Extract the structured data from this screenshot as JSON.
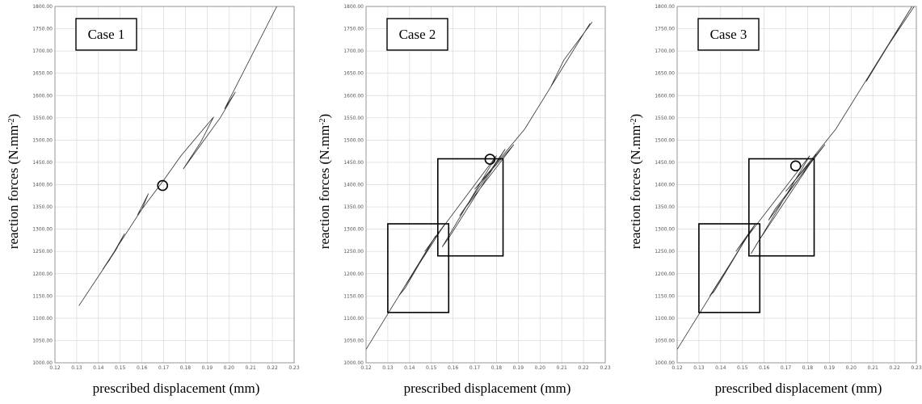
{
  "chart_data": [
    {
      "type": "line",
      "annotation": "Case 1",
      "xlabel": "prescribed displacement (mm)",
      "ylabel_main": "reaction forces (N.mm",
      "ylabel_sup": "-2",
      "ylabel_end": ")",
      "xlim": [
        0.12,
        0.23
      ],
      "ylim": [
        1000,
        1800
      ],
      "xticks": [
        "0.12",
        "0.13",
        "0.14",
        "0.15",
        "0.16",
        "0.17",
        "0.18",
        "0.19",
        "0.20",
        "0.21",
        "0.22",
        "0.23"
      ],
      "yticks": [
        "1000.00",
        "1050.00",
        "1100.00",
        "1150.00",
        "1200.00",
        "1250.00",
        "1300.00",
        "1350.00",
        "1400.00",
        "1450.00",
        "1500.00",
        "1550.00",
        "1600.00",
        "1650.00",
        "1700.00",
        "1750.00",
        "1800.00"
      ],
      "grid": true,
      "marker": {
        "x": 0.1695,
        "y": 1398
      },
      "boxes": [],
      "series": [
        {
          "x": [
            0.131,
            0.148,
            0.152,
            0.145,
            0.142,
            0.16,
            0.163,
            0.158,
            0.17,
            0.178,
            0.193,
            0.187,
            0.179,
            0.196,
            0.203,
            0.198,
            0.222
          ],
          "y": [
            1128,
            1253,
            1290,
            1230,
            1210,
            1345,
            1380,
            1332,
            1410,
            1465,
            1552,
            1495,
            1435,
            1550,
            1608,
            1570,
            1800
          ]
        }
      ]
    },
    {
      "type": "line",
      "annotation": "Case 2",
      "xlabel": "prescribed displacement (mm)",
      "ylabel_main": "reaction forces (N.mm",
      "ylabel_sup": "-2",
      "ylabel_end": ")",
      "xlim": [
        0.12,
        0.23
      ],
      "ylim": [
        1000,
        1800
      ],
      "xticks": [
        "0.12",
        "0.13",
        "0.14",
        "0.15",
        "0.16",
        "0.17",
        "0.18",
        "0.19",
        "0.20",
        "0.21",
        "0.22",
        "0.23"
      ],
      "yticks": [
        "1000.00",
        "1050.00",
        "1100.00",
        "1150.00",
        "1200.00",
        "1250.00",
        "1300.00",
        "1350.00",
        "1400.00",
        "1450.00",
        "1500.00",
        "1550.00",
        "1600.00",
        "1650.00",
        "1700.00",
        "1750.00",
        "1800.00"
      ],
      "grid": true,
      "marker": {
        "x": 0.177,
        "y": 1457
      },
      "boxes": [
        {
          "x0": 0.13,
          "x1": 0.158,
          "y0": 1113,
          "y1": 1312
        },
        {
          "x0": 0.153,
          "x1": 0.183,
          "y0": 1240,
          "y1": 1458
        }
      ],
      "series": [
        {
          "x": [
            0.12,
            0.152,
            0.138,
            0.135,
            0.156,
            0.147,
            0.18,
            0.155,
            0.158,
            0.184,
            0.163,
            0.166,
            0.188,
            0.17,
            0.193,
            0.223,
            0.205,
            0.211,
            0.224
          ],
          "y": [
            1030,
            1285,
            1168,
            1150,
            1310,
            1250,
            1465,
            1260,
            1280,
            1480,
            1330,
            1350,
            1490,
            1390,
            1525,
            1762,
            1620,
            1680,
            1765
          ]
        }
      ]
    },
    {
      "type": "line",
      "annotation": "Case 3",
      "xlabel": "prescribed displacement (mm)",
      "ylabel_main": "reaction forces (N.mm",
      "ylabel_sup": "-2",
      "ylabel_end": ")",
      "xlim": [
        0.12,
        0.23
      ],
      "ylim": [
        1000,
        1800
      ],
      "xticks": [
        "0.12",
        "0.13",
        "0.14",
        "0.15",
        "0.16",
        "0.17",
        "0.18",
        "0.19",
        "0.20",
        "0.21",
        "0.22",
        "0.23"
      ],
      "yticks": [
        "1000.00",
        "1050.00",
        "1100.00",
        "1150.00",
        "1200.00",
        "1250.00",
        "1300.00",
        "1350.00",
        "1400.00",
        "1450.00",
        "1500.00",
        "1550.00",
        "1600.00",
        "1650.00",
        "1700.00",
        "1750.00",
        "1800.00"
      ],
      "grid": true,
      "marker": {
        "x": 0.1745,
        "y": 1442
      },
      "boxes": [
        {
          "x0": 0.13,
          "x1": 0.158,
          "y0": 1113,
          "y1": 1312
        },
        {
          "x0": 0.153,
          "x1": 0.183,
          "y0": 1240,
          "y1": 1458
        }
      ],
      "series": [
        {
          "x": [
            0.12,
            0.153,
            0.137,
            0.135,
            0.156,
            0.147,
            0.181,
            0.154,
            0.157,
            0.184,
            0.162,
            0.165,
            0.188,
            0.17,
            0.193,
            0.228,
            0.207,
            0.214,
            0.229
          ],
          "y": [
            1030,
            1290,
            1160,
            1150,
            1312,
            1250,
            1465,
            1245,
            1270,
            1468,
            1320,
            1345,
            1490,
            1385,
            1525,
            1800,
            1632,
            1690,
            1800
          ]
        }
      ]
    }
  ]
}
